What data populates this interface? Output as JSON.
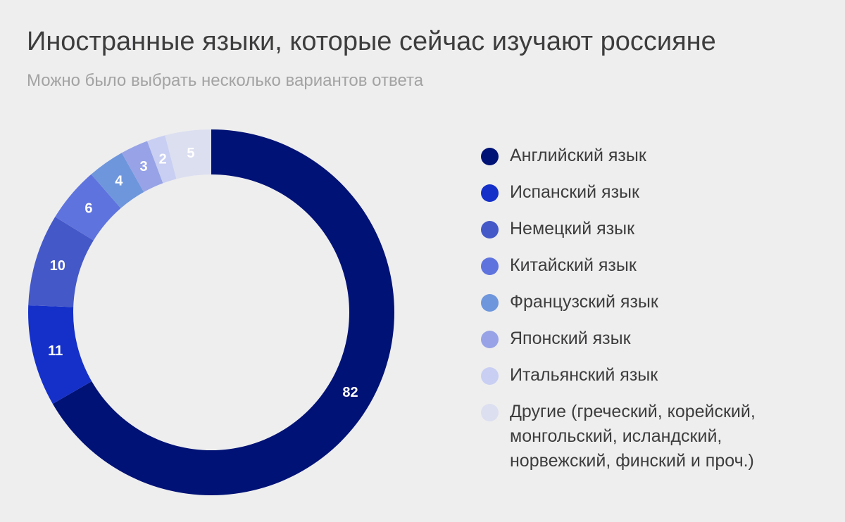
{
  "title": "Иностранные языки, которые сейчас изучают россияне",
  "subtitle": "Можно было выбрать несколько вариантов ответа",
  "chart_data": {
    "type": "pie",
    "variant": "donut",
    "title": "Иностранные языки, которые сейчас изучают россияне",
    "subtitle": "Можно было выбрать несколько вариантов ответа",
    "legend_position": "right",
    "slices": [
      {
        "label": "Английский язык",
        "value": 82,
        "color": "#001275"
      },
      {
        "label": "Испанский язык",
        "value": 11,
        "color": "#1530c9"
      },
      {
        "label": "Немецкий язык",
        "value": 10,
        "color": "#4458c8"
      },
      {
        "label": "Китайский язык",
        "value": 6,
        "color": "#5f73de"
      },
      {
        "label": "Французский язык",
        "value": 4,
        "color": "#6e96dc"
      },
      {
        "label": "Японский язык",
        "value": 3,
        "color": "#97a3e6"
      },
      {
        "label": "Итальянский язык",
        "value": 2,
        "color": "#c9cff2"
      },
      {
        "label": "Другие (греческий, корейский,\nмонгольский, исландский,\nнорвежский, финский и проч.)",
        "value": 5,
        "color": "#dcdff0"
      }
    ]
  }
}
